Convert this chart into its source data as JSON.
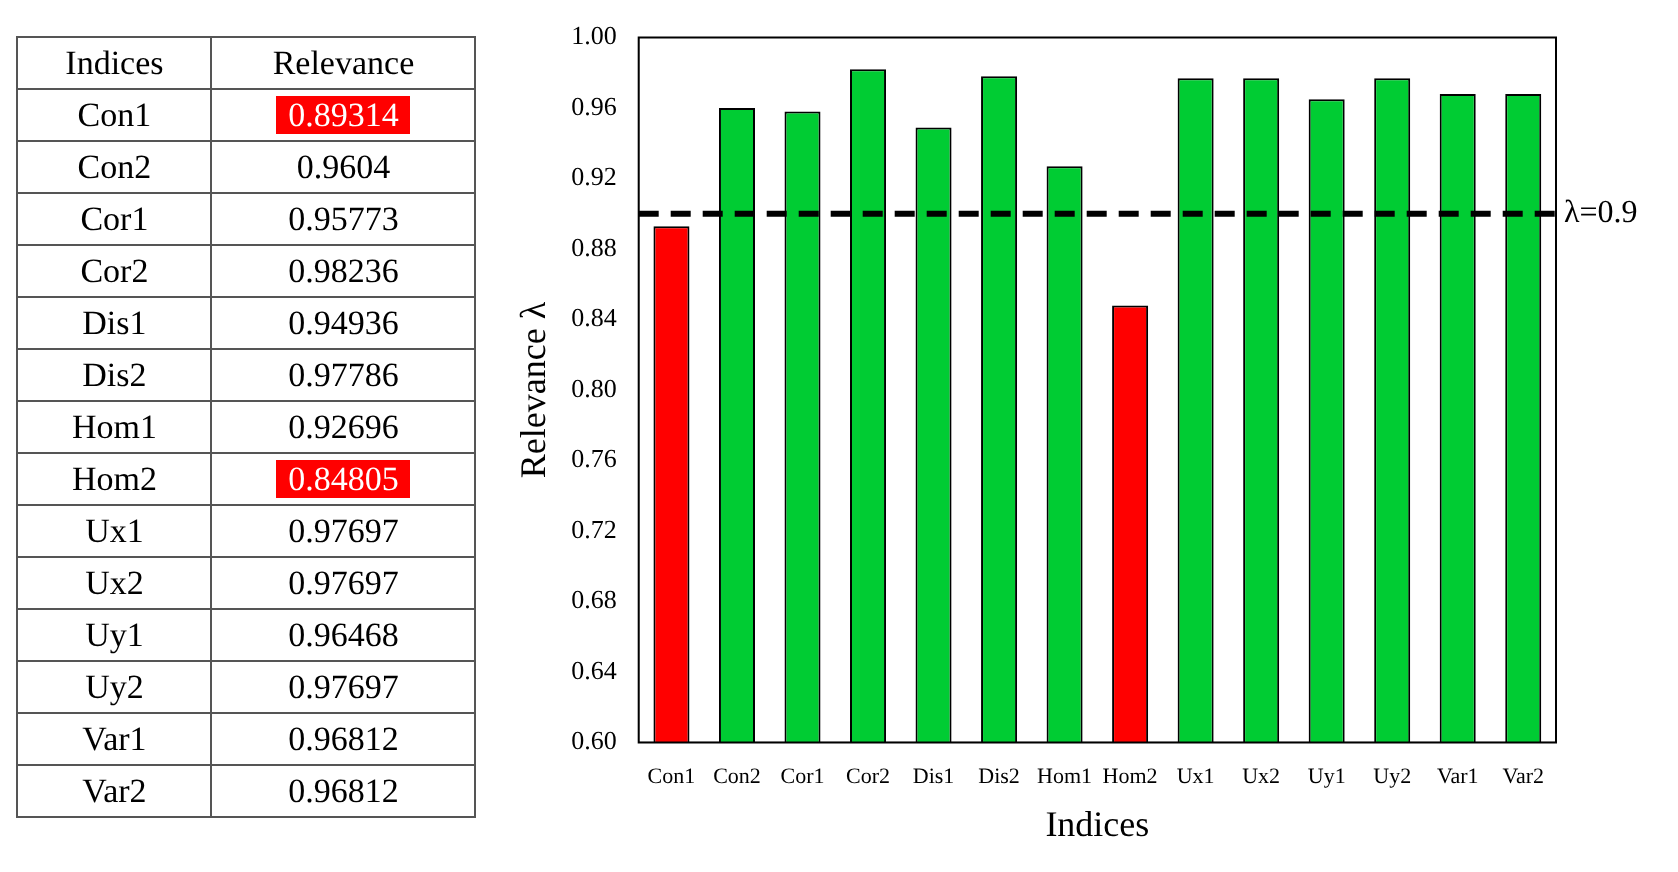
{
  "chart_data": [
    {
      "type": "other",
      "annotations": [
        "Indices",
        "Relevance"
      ],
      "categories": [
        "Con1",
        "Con2",
        "Cor1",
        "Cor2",
        "Dis1",
        "Dis2",
        "Hom1",
        "Hom2",
        "Ux1",
        "Ux2",
        "Uy1",
        "Uy2",
        "Var1",
        "Var2"
      ],
      "value_labels": [
        "0.89314",
        "0.9604",
        "0.95773",
        "0.98236",
        "0.94936",
        "0.97786",
        "0.92696",
        "0.84805",
        "0.97697",
        "0.97697",
        "0.96468",
        "0.97697",
        "0.96812",
        "0.96812"
      ],
      "data_labels": true,
      "colors": [
        "#ff0000",
        "#ffffff",
        "#ffffff",
        "#ffffff",
        "#ffffff",
        "#ffffff",
        "#ffffff",
        "#ff0000",
        "#ffffff",
        "#ffffff",
        "#ffffff",
        "#ffffff",
        "#ffffff",
        "#ffffff"
      ]
    },
    {
      "type": "bar",
      "xlabel": "Indices",
      "ylabel": "Relevance λ",
      "categories": [
        "Con1",
        "Con2",
        "Cor1",
        "Cor2",
        "Dis1",
        "Dis2",
        "Hom1",
        "Hom2",
        "Ux1",
        "Ux2",
        "Uy1",
        "Uy2",
        "Var1",
        "Var2"
      ],
      "values": [
        0.893,
        0.96,
        0.958,
        0.982,
        0.949,
        0.978,
        0.927,
        0.848,
        0.977,
        0.977,
        0.965,
        0.977,
        0.968,
        0.968
      ],
      "colors": [
        "#ff0000",
        "#00cc33",
        "#00cc33",
        "#00cc33",
        "#00cc33",
        "#00cc33",
        "#00cc33",
        "#ff0000",
        "#00cc33",
        "#00cc33",
        "#00cc33",
        "#00cc33",
        "#00cc33",
        "#00cc33"
      ],
      "ylim": [
        0.6,
        1.0
      ],
      "yticks": [
        {
          "value": 0.6,
          "label": "0.60"
        },
        {
          "value": 0.64,
          "label": "0.64"
        },
        {
          "value": 0.68,
          "label": "0.68"
        },
        {
          "value": 0.72,
          "label": "0.72"
        },
        {
          "value": 0.76,
          "label": "0.76"
        },
        {
          "value": 0.8,
          "label": "0.80"
        },
        {
          "value": 0.84,
          "label": "0.84"
        },
        {
          "value": 0.88,
          "label": "0.88"
        },
        {
          "value": 0.92,
          "label": "0.92"
        },
        {
          "value": 0.96,
          "label": "0.96"
        },
        {
          "value": 1.0,
          "label": "1.00"
        }
      ],
      "ref_lines": [
        {
          "axis": "y",
          "value": 0.9,
          "label": "λ=0.9",
          "color": "#000000",
          "line_style": "dashed"
        }
      ],
      "grid": false,
      "legend": false
    }
  ]
}
